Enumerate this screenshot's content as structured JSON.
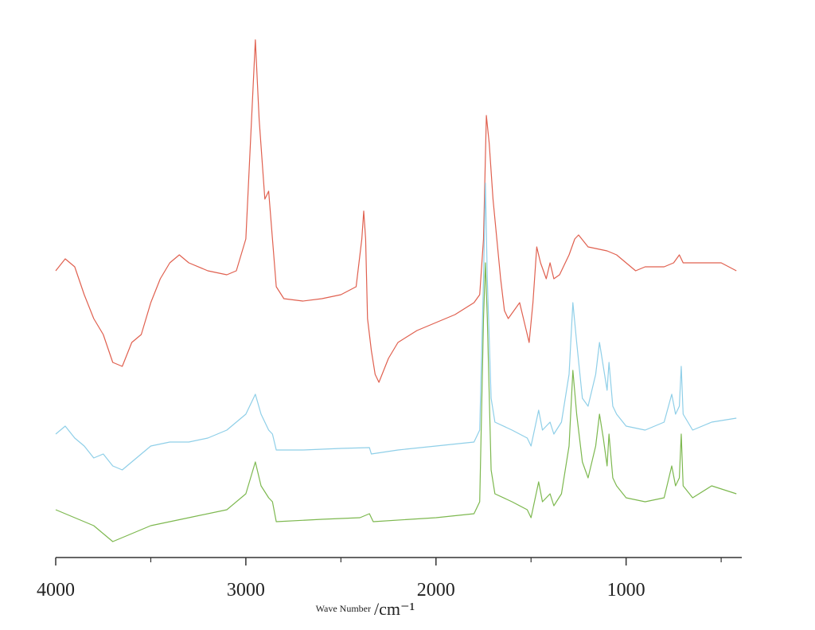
{
  "chart_data": {
    "type": "line",
    "xlabel": "Wave Number",
    "xunit": "/cm⁻¹",
    "xlim": [
      4000,
      400
    ],
    "xticks": [
      4000,
      3000,
      2000,
      1000
    ],
    "xminor_ticks": [
      3500,
      2500,
      1500,
      500
    ],
    "ylim": [
      0,
      660
    ],
    "series": [
      {
        "color": "#e0604f",
        "x": [
          4000,
          3950,
          3900,
          3850,
          3800,
          3750,
          3700,
          3650,
          3600,
          3550,
          3500,
          3450,
          3400,
          3350,
          3300,
          3200,
          3100,
          3050,
          3000,
          2970,
          2950,
          2930,
          2900,
          2880,
          2860,
          2840,
          2800,
          2700,
          2600,
          2500,
          2420,
          2390,
          2380,
          2370,
          2360,
          2340,
          2320,
          2300,
          2250,
          2200,
          2100,
          2000,
          1900,
          1800,
          1770,
          1750,
          1735,
          1720,
          1700,
          1680,
          1660,
          1640,
          1620,
          1560,
          1540,
          1510,
          1490,
          1470,
          1450,
          1420,
          1400,
          1380,
          1350,
          1300,
          1270,
          1250,
          1200,
          1100,
          1050,
          1000,
          950,
          900,
          800,
          750,
          720,
          700,
          600,
          500,
          420
        ],
        "values": [
          360,
          375,
          365,
          330,
          300,
          280,
          245,
          240,
          270,
          280,
          320,
          350,
          370,
          380,
          370,
          360,
          355,
          360,
          400,
          550,
          650,
          550,
          450,
          460,
          400,
          340,
          325,
          322,
          325,
          330,
          340,
          400,
          435,
          400,
          300,
          260,
          230,
          220,
          250,
          270,
          285,
          295,
          305,
          320,
          330,
          400,
          555,
          520,
          450,
          400,
          350,
          310,
          300,
          320,
          300,
          270,
          320,
          390,
          370,
          350,
          370,
          350,
          355,
          380,
          400,
          405,
          390,
          385,
          380,
          370,
          360,
          365,
          365,
          370,
          380,
          370,
          370,
          370,
          360
        ]
      },
      {
        "color": "#8fcfe8",
        "x": [
          4000,
          3950,
          3900,
          3850,
          3800,
          3750,
          3700,
          3650,
          3600,
          3550,
          3500,
          3400,
          3300,
          3200,
          3100,
          3000,
          2950,
          2920,
          2880,
          2860,
          2840,
          2700,
          2500,
          2350,
          2340,
          2200,
          2000,
          1800,
          1770,
          1750,
          1740,
          1730,
          1710,
          1690,
          1600,
          1520,
          1500,
          1460,
          1440,
          1400,
          1380,
          1340,
          1300,
          1280,
          1260,
          1230,
          1200,
          1160,
          1140,
          1120,
          1100,
          1090,
          1070,
          1050,
          1000,
          900,
          800,
          760,
          740,
          720,
          710,
          700,
          650,
          550,
          420
        ],
        "values": [
          155,
          165,
          150,
          140,
          125,
          130,
          115,
          110,
          120,
          130,
          140,
          145,
          145,
          150,
          160,
          180,
          205,
          180,
          160,
          155,
          135,
          135,
          137,
          138,
          130,
          135,
          140,
          145,
          160,
          350,
          470,
          350,
          200,
          170,
          160,
          150,
          140,
          185,
          160,
          170,
          155,
          170,
          230,
          320,
          270,
          200,
          190,
          230,
          270,
          240,
          210,
          245,
          190,
          180,
          165,
          160,
          170,
          205,
          180,
          190,
          240,
          180,
          160,
          170,
          175
        ]
      },
      {
        "color": "#7db84f",
        "x": [
          4000,
          3900,
          3800,
          3750,
          3700,
          3650,
          3600,
          3500,
          3300,
          3100,
          3000,
          2950,
          2920,
          2880,
          2860,
          2840,
          2600,
          2400,
          2350,
          2330,
          2000,
          1800,
          1770,
          1750,
          1740,
          1730,
          1710,
          1690,
          1600,
          1520,
          1500,
          1460,
          1440,
          1400,
          1380,
          1340,
          1300,
          1280,
          1260,
          1230,
          1200,
          1160,
          1140,
          1120,
          1100,
          1090,
          1070,
          1050,
          1000,
          900,
          800,
          760,
          740,
          720,
          710,
          700,
          650,
          550,
          420
        ],
        "values": [
          60,
          50,
          40,
          30,
          20,
          25,
          30,
          40,
          50,
          60,
          80,
          120,
          90,
          75,
          70,
          45,
          48,
          50,
          55,
          45,
          50,
          55,
          70,
          300,
          370,
          300,
          110,
          80,
          70,
          60,
          50,
          95,
          70,
          80,
          65,
          80,
          140,
          235,
          180,
          120,
          100,
          140,
          180,
          150,
          115,
          155,
          100,
          90,
          75,
          70,
          75,
          115,
          90,
          100,
          155,
          90,
          75,
          90,
          80
        ]
      }
    ]
  }
}
